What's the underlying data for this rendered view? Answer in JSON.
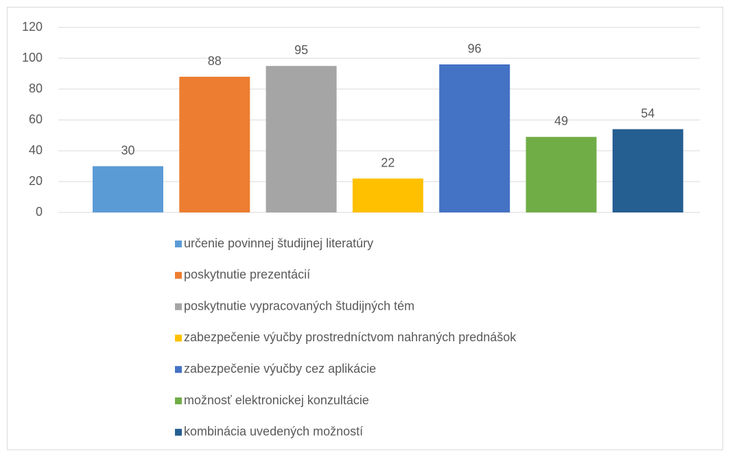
{
  "chart_data": {
    "type": "bar",
    "series": [
      {
        "name": "určenie povinnej študijnej literatúry",
        "color": "#5b9bd5",
        "values": [
          30
        ]
      },
      {
        "name": "poskytnutie prezentácií",
        "color": "#ed7d31",
        "values": [
          88
        ]
      },
      {
        "name": "poskytnutie vypracovaných študijných tém",
        "color": "#a5a5a5",
        "values": [
          95
        ]
      },
      {
        "name": "zabezpečenie výučby prostredníctvom nahraných prednášok",
        "color": "#ffc000",
        "values": [
          22
        ]
      },
      {
        "name": "zabezpečenie výučby cez aplikácie",
        "color": "#4472c4",
        "values": [
          96
        ]
      },
      {
        "name": "možnosť elektronickej konzultácie",
        "color": "#70ad47",
        "values": [
          49
        ]
      },
      {
        "name": "kombinácia uvedených možností",
        "color": "#255e91",
        "values": [
          54
        ]
      }
    ],
    "ylim": [
      0,
      120
    ],
    "yticks": [
      0,
      20,
      40,
      60,
      80,
      100,
      120
    ],
    "grid": true,
    "legend": "bottom"
  }
}
